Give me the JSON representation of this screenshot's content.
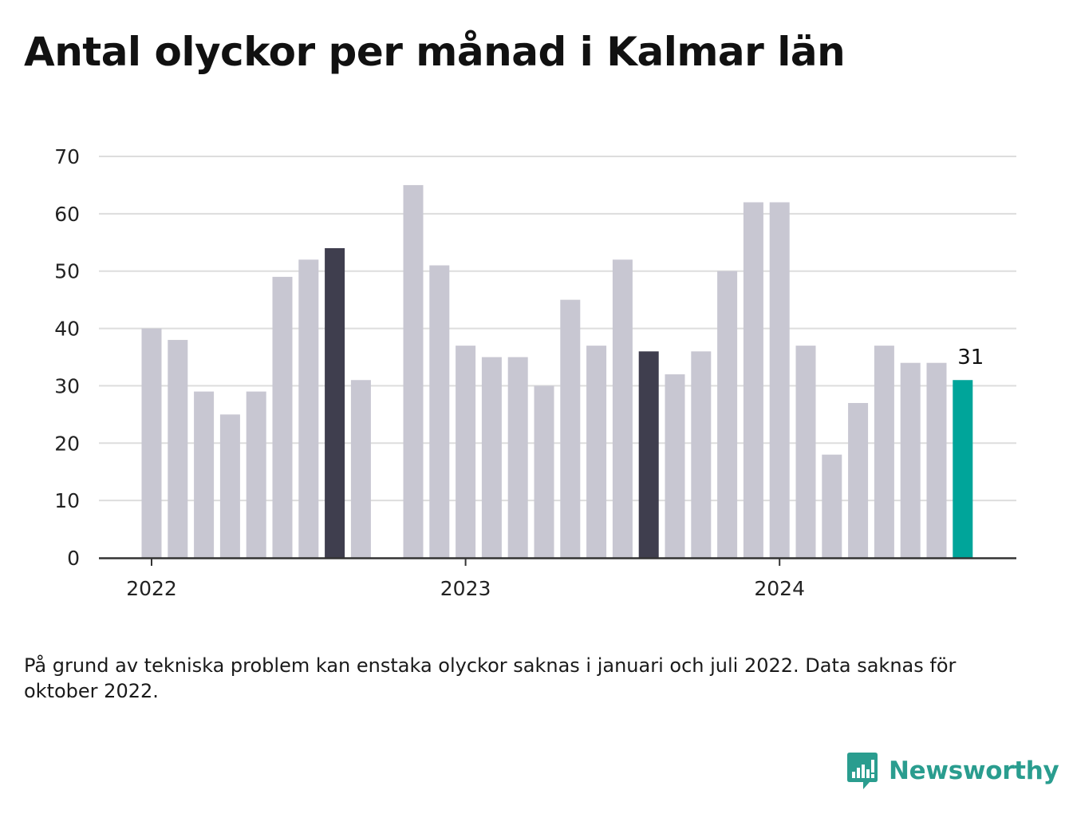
{
  "title": "Antal olyckor per månad i Kalmar län",
  "note": "På grund av tekniska problem kan enstaka olyckor saknas i januari och juli 2022. Data saknas för oktober 2022.",
  "brand": {
    "name": "Newsworthy",
    "icon": "newsworthy-logo-icon",
    "color": "#2a9d8f"
  },
  "colors": {
    "bar_default": "#c8c7d2",
    "bar_highlight": "#3f3e4e",
    "bar_latest": "#00a59a",
    "grid": "#dddddd",
    "axis": "#333333"
  },
  "chart_data": {
    "type": "bar",
    "title": "Antal olyckor per månad i Kalmar län",
    "ylim": [
      0,
      70
    ],
    "yticks": [
      0,
      10,
      20,
      30,
      40,
      50,
      60,
      70
    ],
    "grid": true,
    "x_tick_labels": [
      {
        "label": "2022",
        "month": "2022-01"
      },
      {
        "label": "2023",
        "month": "2023-01"
      },
      {
        "label": "2024",
        "month": "2024-01"
      }
    ],
    "annotation": {
      "month": "2024-08",
      "text": "31"
    },
    "months": [
      "2022-01",
      "2022-02",
      "2022-03",
      "2022-04",
      "2022-05",
      "2022-06",
      "2022-07",
      "2022-08",
      "2022-09",
      "2022-10",
      "2022-11",
      "2022-12",
      "2023-01",
      "2023-02",
      "2023-03",
      "2023-04",
      "2023-05",
      "2023-06",
      "2023-07",
      "2023-08",
      "2023-09",
      "2023-10",
      "2023-11",
      "2023-12",
      "2024-01",
      "2024-02",
      "2024-03",
      "2024-04",
      "2024-05",
      "2024-06",
      "2024-07",
      "2024-08"
    ],
    "values": [
      40,
      38,
      29,
      25,
      29,
      49,
      52,
      54,
      31,
      null,
      65,
      51,
      37,
      35,
      35,
      30,
      45,
      37,
      52,
      36,
      32,
      36,
      50,
      62,
      62,
      37,
      18,
      27,
      37,
      34,
      34,
      31
    ],
    "highlight": [
      "2022-08",
      "2023-08"
    ],
    "latest": "2024-08"
  }
}
